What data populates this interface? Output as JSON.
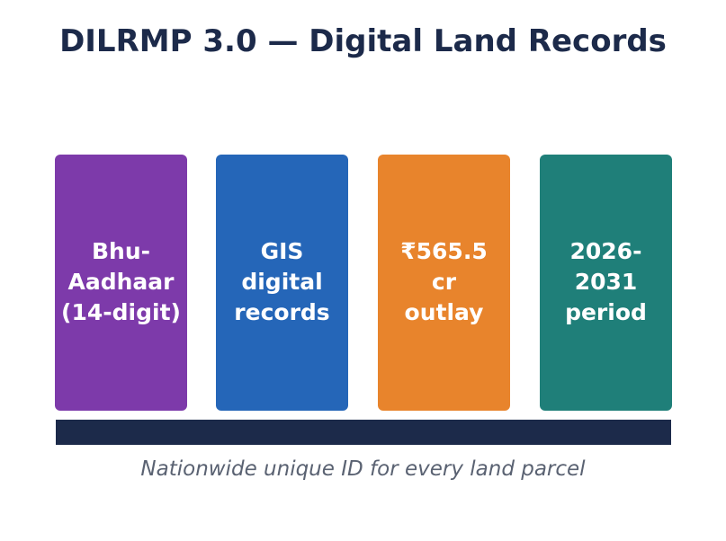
{
  "title": "DILRMP 3.0 — Digital Land Records",
  "cards": [
    {
      "text": "Bhu-\nAadhaar\n(14-digit)",
      "color": "#7d3aaa"
    },
    {
      "text": "GIS\ndigital\nrecords",
      "color": "#2566b8"
    },
    {
      "text": "₹565.5\ncr\noutlay",
      "color": "#e8842c"
    },
    {
      "text": "2026-\n2031\nperiod",
      "color": "#1f7f79"
    }
  ],
  "base_bar_color": "#1c2a4a",
  "caption": "Nationwide unique ID for every land parcel"
}
